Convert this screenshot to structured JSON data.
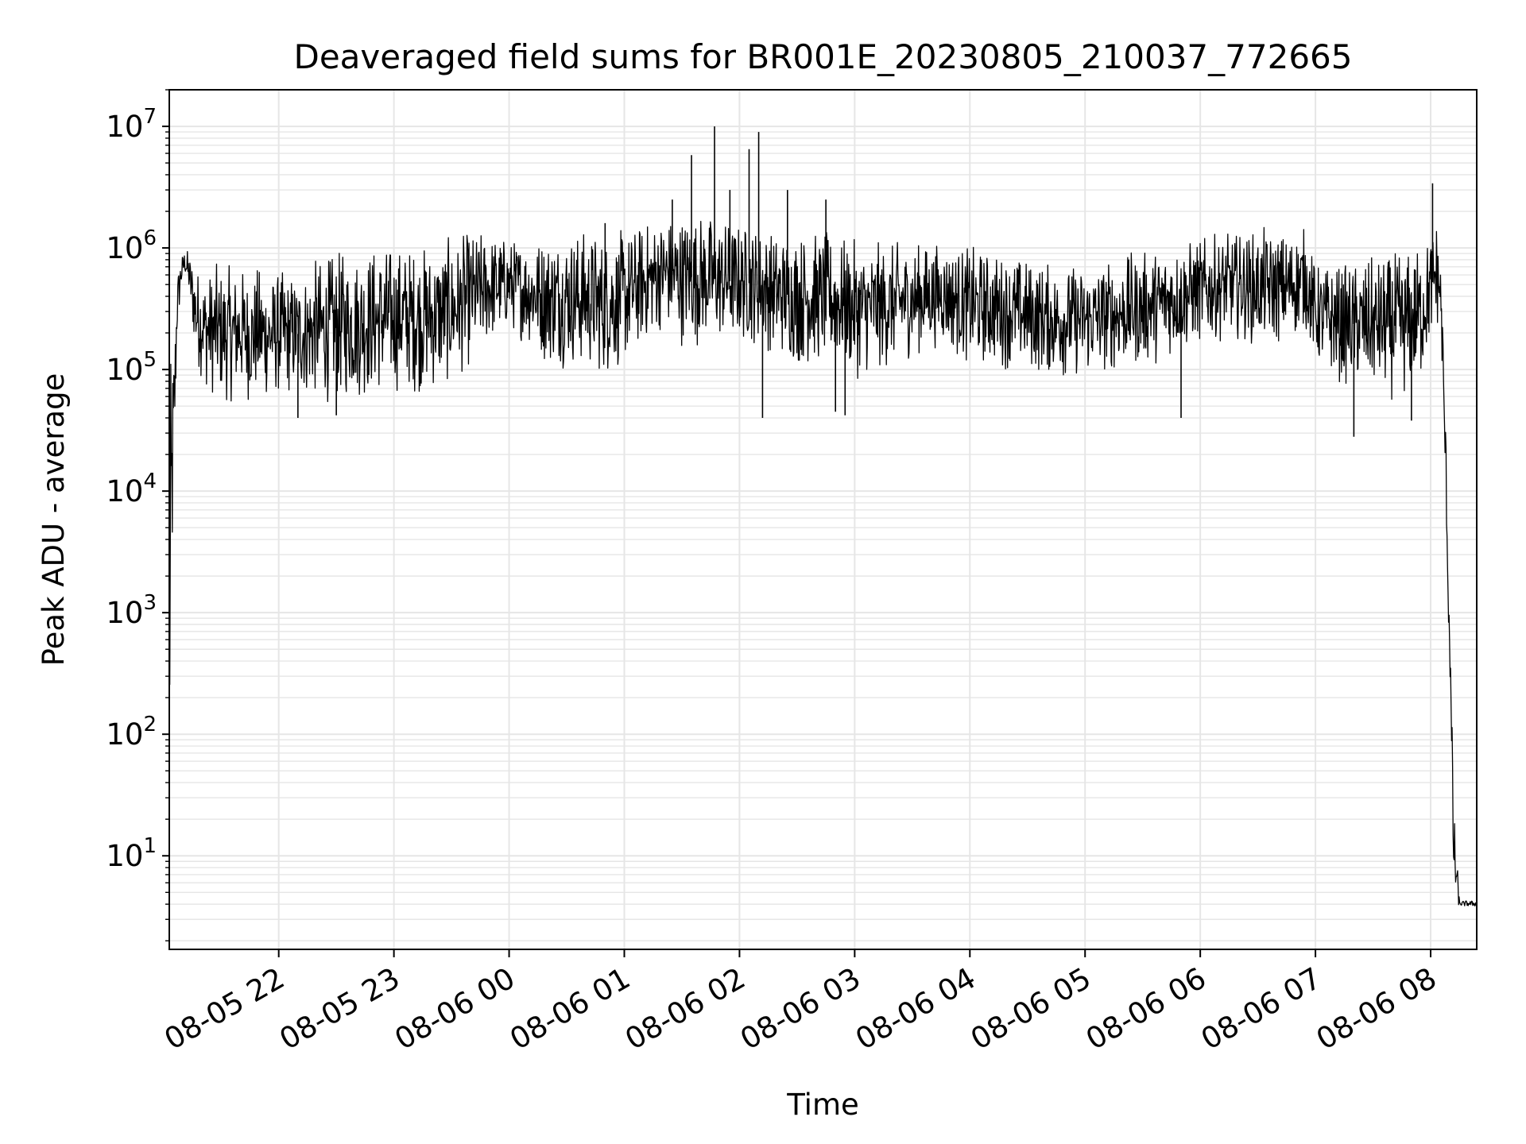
{
  "chart_data": {
    "type": "line",
    "title": "Deaveraged field sums for BR001E_20230805_210037_772665",
    "xlabel": "Time",
    "ylabel": "Peak ADU - average",
    "yscale": "log",
    "ylim": [
      1.7,
      20000000
    ],
    "xlim": [
      "2023-08-05 21:03",
      "2023-08-06 08:24"
    ],
    "grid": true,
    "line_color": "#000000",
    "grid_color": "#e6e6e6",
    "x_ticks": [
      {
        "label": "08-05 22",
        "t": "2023-08-05 22:00"
      },
      {
        "label": "08-05 23",
        "t": "2023-08-05 23:00"
      },
      {
        "label": "08-06 00",
        "t": "2023-08-06 00:00"
      },
      {
        "label": "08-06 01",
        "t": "2023-08-06 01:00"
      },
      {
        "label": "08-06 02",
        "t": "2023-08-06 02:00"
      },
      {
        "label": "08-06 03",
        "t": "2023-08-06 03:00"
      },
      {
        "label": "08-06 04",
        "t": "2023-08-06 04:00"
      },
      {
        "label": "08-06 05",
        "t": "2023-08-06 05:00"
      },
      {
        "label": "08-06 06",
        "t": "2023-08-06 06:00"
      },
      {
        "label": "08-06 07",
        "t": "2023-08-06 07:00"
      },
      {
        "label": "08-06 08",
        "t": "2023-08-06 08:00"
      }
    ],
    "y_ticks": [
      {
        "base": "10",
        "exp": "1",
        "value": 10
      },
      {
        "base": "10",
        "exp": "2",
        "value": 100
      },
      {
        "base": "10",
        "exp": "3",
        "value": 1000
      },
      {
        "base": "10",
        "exp": "4",
        "value": 10000
      },
      {
        "base": "10",
        "exp": "5",
        "value": 100000
      },
      {
        "base": "10",
        "exp": "6",
        "value": 1000000
      },
      {
        "base": "10",
        "exp": "7",
        "value": 10000000
      }
    ],
    "series": [
      {
        "x": [
          "2023-08-05 21:03",
          "2023-08-05 21:04",
          "2023-08-05 21:06",
          "2023-08-05 21:07",
          "2023-08-05 21:09",
          "2023-08-05 21:11",
          "2023-08-05 21:13",
          "2023-08-05 21:15",
          "2023-08-05 21:17",
          "2023-08-05 21:20",
          "2023-08-05 21:23",
          "2023-08-05 21:26",
          "2023-08-05 21:30",
          "2023-08-05 21:35",
          "2023-08-05 21:40",
          "2023-08-05 21:45",
          "2023-08-05 21:50",
          "2023-08-05 21:55",
          "2023-08-05 22:00",
          "2023-08-05 22:10",
          "2023-08-05 22:20",
          "2023-08-05 22:30",
          "2023-08-05 22:40",
          "2023-08-05 22:50",
          "2023-08-05 23:00",
          "2023-08-05 23:10",
          "2023-08-05 23:20",
          "2023-08-05 23:30",
          "2023-08-05 23:40",
          "2023-08-05 23:50",
          "2023-08-06 00:00",
          "2023-08-06 00:10",
          "2023-08-06 00:20",
          "2023-08-06 00:30",
          "2023-08-06 00:40",
          "2023-08-06 00:50",
          "2023-08-06 01:00",
          "2023-08-06 01:10",
          "2023-08-06 01:20",
          "2023-08-06 01:30",
          "2023-08-06 01:40",
          "2023-08-06 01:50",
          "2023-08-06 02:00",
          "2023-08-06 02:10",
          "2023-08-06 02:20",
          "2023-08-06 02:30",
          "2023-08-06 02:40",
          "2023-08-06 02:50",
          "2023-08-06 03:00",
          "2023-08-06 03:15",
          "2023-08-06 03:30",
          "2023-08-06 03:45",
          "2023-08-06 04:00",
          "2023-08-06 04:15",
          "2023-08-06 04:30",
          "2023-08-06 04:45",
          "2023-08-06 05:00",
          "2023-08-06 05:15",
          "2023-08-06 05:30",
          "2023-08-06 05:45",
          "2023-08-06 06:00",
          "2023-08-06 06:15",
          "2023-08-06 06:30",
          "2023-08-06 06:45",
          "2023-08-06 06:55",
          "2023-08-06 07:00",
          "2023-08-06 07:15",
          "2023-08-06 07:30",
          "2023-08-06 07:45",
          "2023-08-06 07:55",
          "2023-08-06 08:00",
          "2023-08-06 08:03",
          "2023-08-06 08:05",
          "2023-08-06 08:06",
          "2023-08-06 08:07",
          "2023-08-06 08:08",
          "2023-08-06 08:09",
          "2023-08-06 08:10",
          "2023-08-06 08:12",
          "2023-08-06 08:15",
          "2023-08-06 08:20",
          "2023-08-06 08:24"
        ],
        "lo": [
          1.8,
          400,
          20000,
          150000,
          400000,
          600000,
          400000,
          200000,
          100000,
          80000,
          60000,
          55000,
          50000,
          50000,
          55000,
          50000,
          50000,
          52000,
          55000,
          55000,
          50000,
          50000,
          52000,
          55000,
          60000,
          60000,
          60000,
          70000,
          100000,
          150000,
          200000,
          150000,
          100000,
          100000,
          90000,
          80000,
          100000,
          150000,
          200000,
          150000,
          150000,
          150000,
          150000,
          150000,
          120000,
          100000,
          100000,
          100000,
          80000,
          90000,
          120000,
          150000,
          100000,
          100000,
          90000,
          80000,
          80000,
          90000,
          100000,
          120000,
          150000,
          180000,
          150000,
          150000,
          200000,
          100000,
          70000,
          60000,
          50000,
          70000,
          150000,
          200000,
          200000,
          80000,
          20000,
          8000,
          1000,
          300,
          3.8,
          3.8,
          3.8,
          3.8
        ],
        "hi": [
          90000,
          150000,
          300000,
          700000,
          900000,
          1000000,
          1000000,
          900000,
          800000,
          700000,
          700000,
          800000,
          800000,
          750000,
          800000,
          700000,
          800000,
          700000,
          700000,
          700000,
          900000,
          1000000,
          1100000,
          1200000,
          1200000,
          1200000,
          1200000,
          1300000,
          1500000,
          1500000,
          1300000,
          1300000,
          1500000,
          1600000,
          1600000,
          1500000,
          1500000,
          1800000,
          2000000,
          2200000,
          2200000,
          2000000,
          1800000,
          1700000,
          1500000,
          1600000,
          1500000,
          1400000,
          1200000,
          1200000,
          1200000,
          1200000,
          1100000,
          1000000,
          900000,
          800000,
          800000,
          900000,
          1000000,
          1200000,
          1300000,
          1400000,
          1500000,
          1500000,
          1600000,
          800000,
          800000,
          900000,
          1000000,
          1200000,
          1500000,
          2000000,
          1000000,
          500000,
          100000,
          30000,
          3000,
          1000,
          30,
          4.3,
          4.3,
          4.3
        ]
      }
    ],
    "spikes": [
      {
        "t": "2023-08-06 00:50",
        "y": 1600000
      },
      {
        "t": "2023-08-06 01:25",
        "y": 2500000
      },
      {
        "t": "2023-08-06 01:35",
        "y": 5800000
      },
      {
        "t": "2023-08-06 01:47",
        "y": 10000000
      },
      {
        "t": "2023-08-06 01:55",
        "y": 3000000
      },
      {
        "t": "2023-08-06 02:05",
        "y": 6500000
      },
      {
        "t": "2023-08-06 02:10",
        "y": 9000000
      },
      {
        "t": "2023-08-06 02:25",
        "y": 3000000
      },
      {
        "t": "2023-08-06 02:45",
        "y": 2500000
      },
      {
        "t": "2023-08-06 08:01",
        "y": 3400000
      }
    ],
    "dips": [
      {
        "t": "2023-08-05 22:10",
        "y": 40000
      },
      {
        "t": "2023-08-05 22:30",
        "y": 42000
      },
      {
        "t": "2023-08-06 02:12",
        "y": 40000
      },
      {
        "t": "2023-08-06 02:50",
        "y": 45000
      },
      {
        "t": "2023-08-06 02:55",
        "y": 42000
      },
      {
        "t": "2023-08-06 05:50",
        "y": 40000
      },
      {
        "t": "2023-08-06 07:20",
        "y": 28000
      },
      {
        "t": "2023-08-06 07:50",
        "y": 38000
      }
    ]
  }
}
